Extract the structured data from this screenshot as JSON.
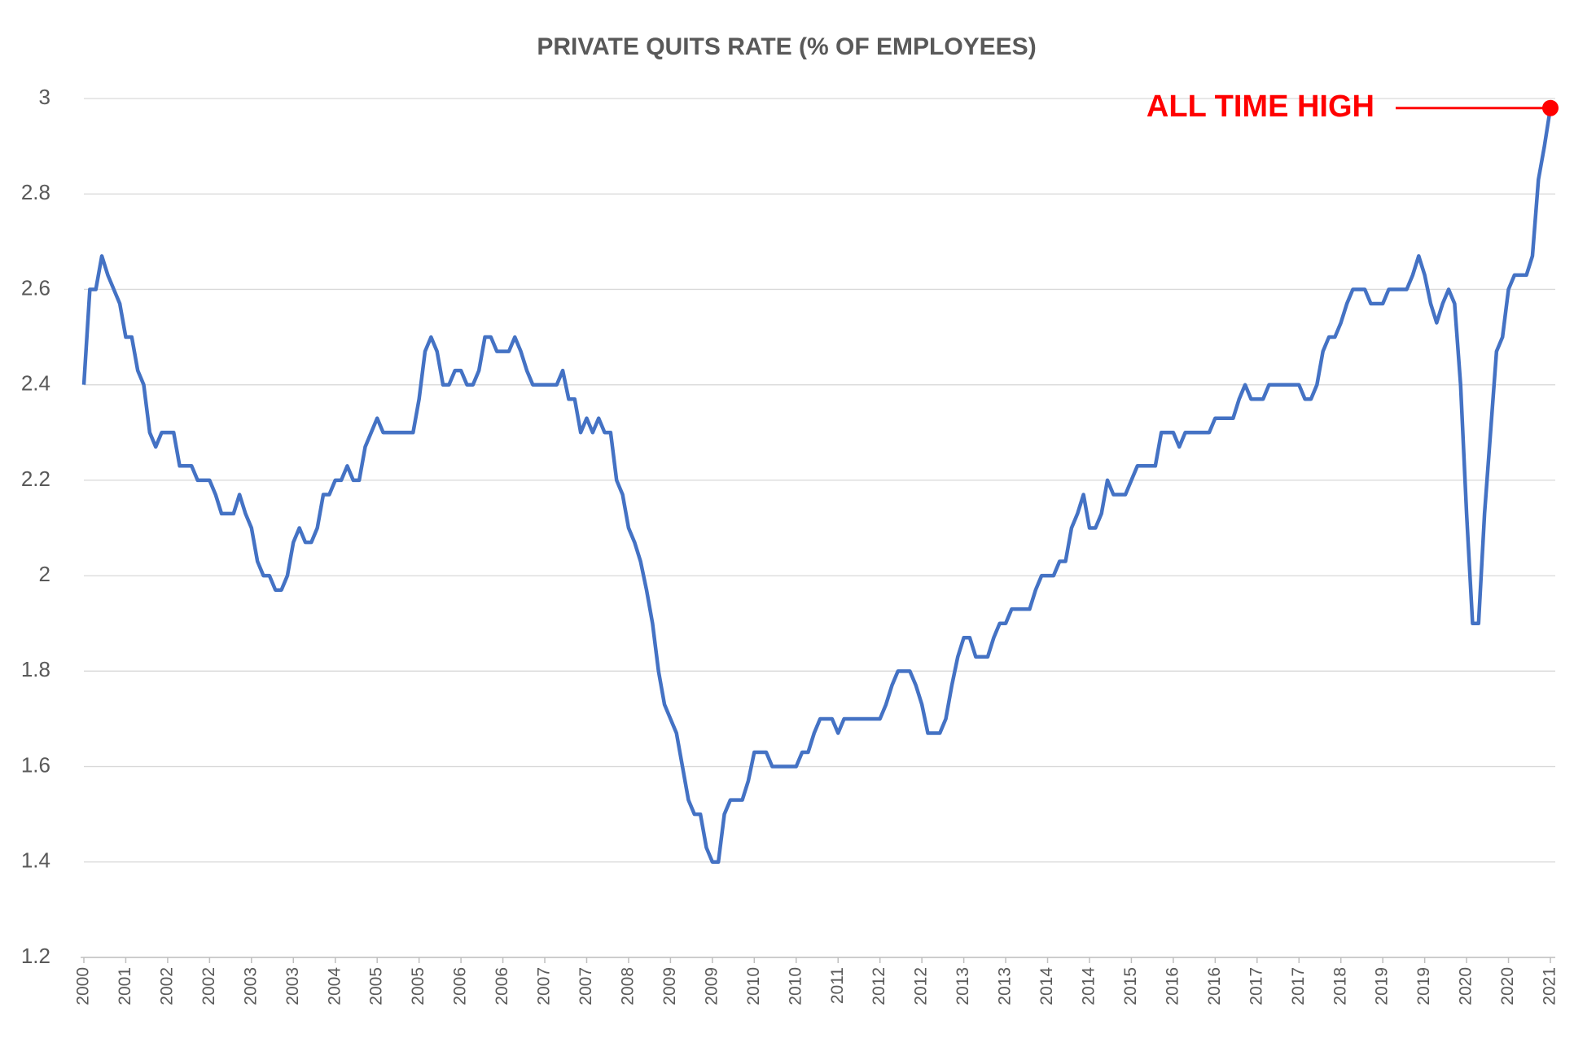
{
  "chart_data": {
    "type": "line",
    "title": "PRIVATE QUITS RATE (% OF EMPLOYEES)",
    "categories": [
      "2000",
      null,
      null,
      null,
      null,
      null,
      null,
      "2001",
      null,
      null,
      null,
      null,
      null,
      null,
      "2002",
      null,
      null,
      null,
      null,
      null,
      null,
      "2002",
      null,
      null,
      null,
      null,
      null,
      null,
      "2003",
      null,
      null,
      null,
      null,
      null,
      null,
      "2003",
      null,
      null,
      null,
      null,
      null,
      null,
      "2004",
      null,
      null,
      null,
      null,
      null,
      null,
      "2005",
      null,
      null,
      null,
      null,
      null,
      null,
      "2005",
      null,
      null,
      null,
      null,
      null,
      null,
      "2006",
      null,
      null,
      null,
      null,
      null,
      null,
      "2006",
      null,
      null,
      null,
      null,
      null,
      null,
      "2007",
      null,
      null,
      null,
      null,
      null,
      null,
      "2007",
      null,
      null,
      null,
      null,
      null,
      null,
      "2008",
      null,
      null,
      null,
      null,
      null,
      null,
      "2009",
      null,
      null,
      null,
      null,
      null,
      null,
      "2009",
      null,
      null,
      null,
      null,
      null,
      null,
      "2010",
      null,
      null,
      null,
      null,
      null,
      null,
      "2010",
      null,
      null,
      null,
      null,
      null,
      null,
      "2011",
      null,
      null,
      null,
      null,
      null,
      null,
      "2012",
      null,
      null,
      null,
      null,
      null,
      null,
      "2012",
      null,
      null,
      null,
      null,
      null,
      null,
      "2013",
      null,
      null,
      null,
      null,
      null,
      null,
      "2013",
      null,
      null,
      null,
      null,
      null,
      null,
      "2014",
      null,
      null,
      null,
      null,
      null,
      null,
      "2014",
      null,
      null,
      null,
      null,
      null,
      null,
      "2015",
      null,
      null,
      null,
      null,
      null,
      null,
      "2016",
      null,
      null,
      null,
      null,
      null,
      null,
      "2016",
      null,
      null,
      null,
      null,
      null,
      null,
      "2017",
      null,
      null,
      null,
      null,
      null,
      null,
      "2017",
      null,
      null,
      null,
      null,
      null,
      null,
      "2018",
      null,
      null,
      null,
      null,
      null,
      null,
      "2019",
      null,
      null,
      null,
      null,
      null,
      null,
      "2019",
      null,
      null,
      null,
      null,
      null,
      null,
      "2020",
      null,
      null,
      null,
      null,
      null,
      null,
      "2020",
      null,
      null,
      null,
      null,
      null,
      null,
      "2021"
    ],
    "series": [
      {
        "name": "Private quits rate",
        "color": "#4472c4",
        "values": [
          2.4,
          2.6,
          2.6,
          2.67,
          2.63,
          2.6,
          2.57,
          2.5,
          2.5,
          2.43,
          2.4,
          2.3,
          2.27,
          2.3,
          2.3,
          2.3,
          2.23,
          2.23,
          2.23,
          2.2,
          2.2,
          2.2,
          2.17,
          2.13,
          2.13,
          2.13,
          2.17,
          2.13,
          2.1,
          2.03,
          2,
          2,
          1.97,
          1.97,
          2,
          2.07,
          2.1,
          2.07,
          2.07,
          2.1,
          2.17,
          2.17,
          2.2,
          2.2,
          2.23,
          2.2,
          2.2,
          2.27,
          2.3,
          2.33,
          2.3,
          2.3,
          2.3,
          2.3,
          2.3,
          2.3,
          2.37,
          2.47,
          2.5,
          2.47,
          2.4,
          2.4,
          2.43,
          2.43,
          2.4,
          2.4,
          2.43,
          2.5,
          2.5,
          2.47,
          2.47,
          2.47,
          2.5,
          2.47,
          2.43,
          2.4,
          2.4,
          2.4,
          2.4,
          2.4,
          2.43,
          2.37,
          2.37,
          2.3,
          2.33,
          2.3,
          2.33,
          2.3,
          2.3,
          2.2,
          2.17,
          2.1,
          2.07,
          2.03,
          1.97,
          1.9,
          1.8,
          1.73,
          1.7,
          1.67,
          1.6,
          1.53,
          1.5,
          1.5,
          1.43,
          1.4,
          1.4,
          1.5,
          1.53,
          1.53,
          1.53,
          1.57,
          1.63,
          1.63,
          1.63,
          1.6,
          1.6,
          1.6,
          1.6,
          1.6,
          1.63,
          1.63,
          1.67,
          1.7,
          1.7,
          1.7,
          1.67,
          1.7,
          1.7,
          1.7,
          1.7,
          1.7,
          1.7,
          1.7,
          1.73,
          1.77,
          1.8,
          1.8,
          1.8,
          1.77,
          1.73,
          1.67,
          1.67,
          1.67,
          1.7,
          1.77,
          1.83,
          1.87,
          1.87,
          1.83,
          1.83,
          1.83,
          1.87,
          1.9,
          1.9,
          1.93,
          1.93,
          1.93,
          1.93,
          1.97,
          2,
          2,
          2,
          2.03,
          2.03,
          2.1,
          2.13,
          2.17,
          2.1,
          2.1,
          2.13,
          2.2,
          2.17,
          2.17,
          2.17,
          2.2,
          2.23,
          2.23,
          2.23,
          2.23,
          2.3,
          2.3,
          2.3,
          2.27,
          2.3,
          2.3,
          2.3,
          2.3,
          2.3,
          2.33,
          2.33,
          2.33,
          2.33,
          2.37,
          2.4,
          2.37,
          2.37,
          2.37,
          2.4,
          2.4,
          2.4,
          2.4,
          2.4,
          2.4,
          2.37,
          2.37,
          2.4,
          2.47,
          2.5,
          2.5,
          2.53,
          2.57,
          2.6,
          2.6,
          2.6,
          2.57,
          2.57,
          2.57,
          2.6,
          2.6,
          2.6,
          2.6,
          2.63,
          2.67,
          2.63,
          2.57,
          2.53,
          2.57,
          2.6,
          2.57,
          2.4,
          2.13,
          1.9,
          1.9,
          2.13,
          2.3,
          2.47,
          2.5,
          2.6,
          2.63,
          2.63,
          2.63,
          2.67,
          2.83,
          2.9,
          2.98
        ]
      }
    ],
    "ylim": [
      1.2,
      3
    ],
    "yticks": [
      1.2,
      1.4,
      1.6,
      1.8,
      2,
      2.2,
      2.4,
      2.6,
      2.8,
      3
    ],
    "grid": true,
    "annotation": {
      "text": "ALL TIME HIGH",
      "color": "#ff0000"
    }
  }
}
